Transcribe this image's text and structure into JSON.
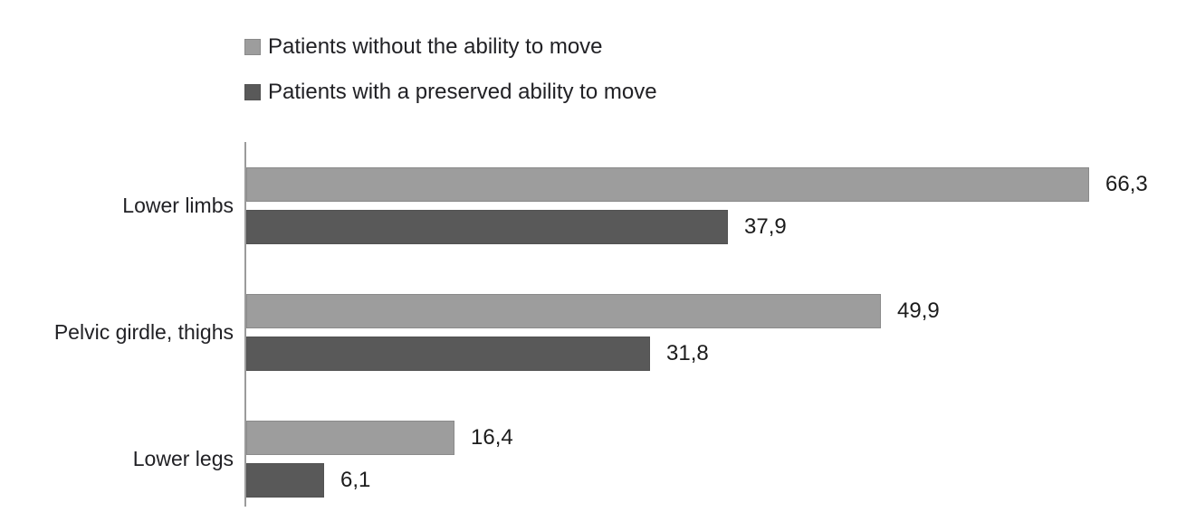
{
  "page": {
    "background": "#ffffff",
    "text_color": "#212125"
  },
  "chart_data": {
    "type": "bar",
    "orientation": "horizontal",
    "title": "",
    "xlabel": "",
    "ylabel": "",
    "categories": [
      "Lower limbs",
      "Pelvic girdle, thighs",
      "Lower legs"
    ],
    "series": [
      {
        "name": "Patients without the ability to move",
        "color": "#9d9d9d",
        "border_color": "#8a8a8a",
        "values": [
          66.3,
          49.9,
          16.4
        ],
        "value_labels": [
          "66,3",
          "49,9",
          "16,4"
        ]
      },
      {
        "name": "Patients with a preserved ability to move",
        "color": "#595959",
        "border_color": "#525252",
        "values": [
          37.9,
          31.8,
          6.1
        ],
        "value_labels": [
          "37,9",
          "31,8",
          "6,1"
        ]
      }
    ],
    "xlim": [
      0,
      70
    ],
    "grid": false,
    "legend_position": "top",
    "axis_color": "#9b9b9b",
    "decimal_separator": ","
  }
}
